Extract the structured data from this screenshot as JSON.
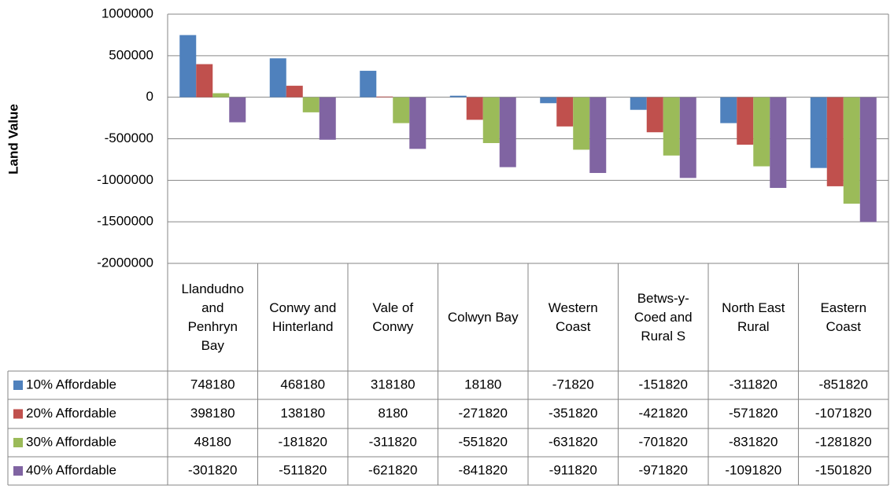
{
  "chart_data": {
    "type": "bar",
    "y_label": "Land Value",
    "categories": [
      "Llandudno and Penhryn Bay",
      "Conwy and Hinterland",
      "Vale of Conwy",
      "Colwyn Bay",
      "Western Coast",
      "Betws-y-Coed and Rural S",
      "North East Rural",
      "Eastern Coast"
    ],
    "series": [
      {
        "name": "10% Affordable",
        "color": "#4f81bd",
        "values": [
          748180,
          468180,
          318180,
          18180,
          -71820,
          -151820,
          -311820,
          -851820
        ]
      },
      {
        "name": "20% Affordable",
        "color": "#c0504d",
        "values": [
          398180,
          138180,
          8180,
          -271820,
          -351820,
          -421820,
          -571820,
          -1071820
        ]
      },
      {
        "name": "30% Affordable",
        "color": "#9bbb59",
        "values": [
          48180,
          -181820,
          -311820,
          -551820,
          -631820,
          -701820,
          -831820,
          -1281820
        ]
      },
      {
        "name": "40% Affordable",
        "color": "#8064a2",
        "values": [
          -301820,
          -511820,
          -621820,
          -841820,
          -911820,
          -971820,
          -1091820,
          -1501820
        ]
      }
    ],
    "ylim": [
      -2000000,
      1000000
    ],
    "yticks": [
      -2000000,
      -1500000,
      -1000000,
      -500000,
      0,
      500000,
      1000000
    ],
    "grid": true,
    "data_table": true
  }
}
